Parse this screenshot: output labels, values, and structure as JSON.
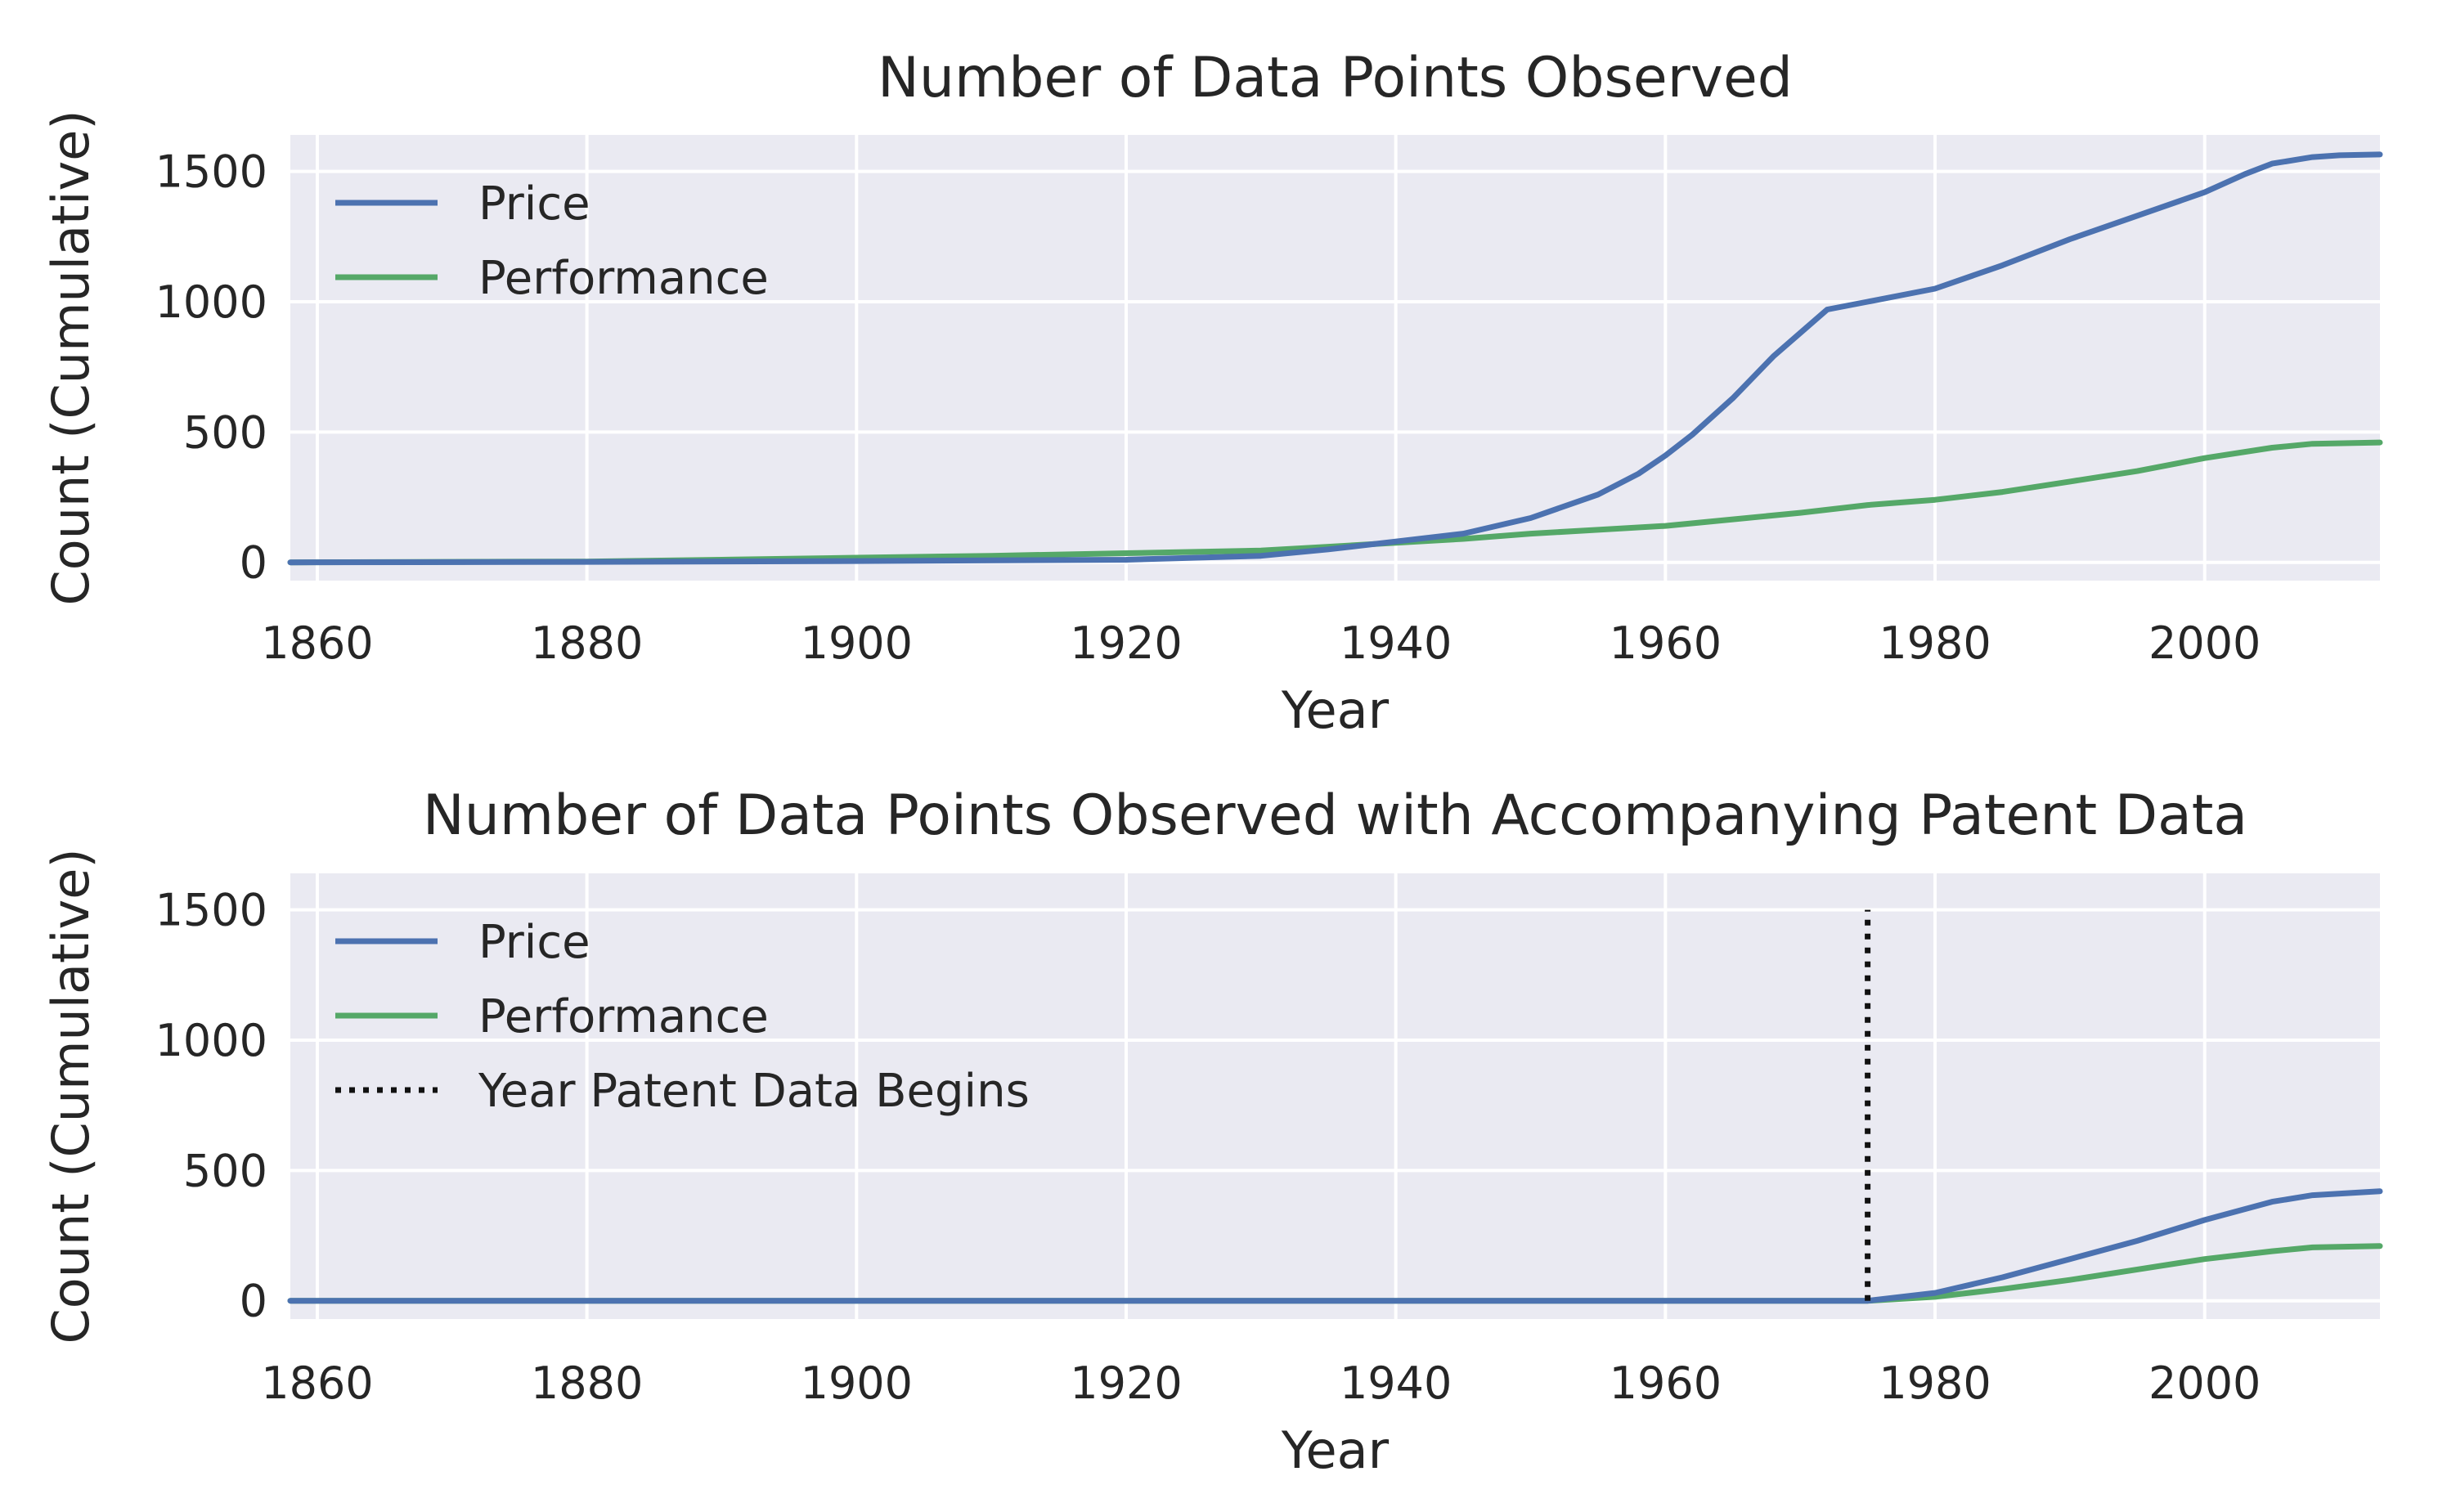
{
  "chart_data": [
    {
      "type": "line",
      "title": "Number of Data Points Observed",
      "xlabel": "Year",
      "ylabel": "Count (Cumulative)",
      "xlim": [
        1858,
        2013
      ],
      "ylim": [
        -70,
        1640
      ],
      "xticks": [
        "1860",
        "1880",
        "1900",
        "1920",
        "1940",
        "1960",
        "1980",
        "2000"
      ],
      "yticks": [
        "0",
        "500",
        "1000",
        "1500"
      ],
      "grid": true,
      "legend": "top-left",
      "series": [
        {
          "name": "Price",
          "color": "#4c72b0",
          "x": [
            1858,
            1880,
            1900,
            1920,
            1930,
            1935,
            1940,
            1945,
            1950,
            1955,
            1958,
            1960,
            1962,
            1965,
            1968,
            1970,
            1972,
            1975,
            1980,
            1985,
            1990,
            1995,
            2000,
            2003,
            2005,
            2008,
            2010,
            2013
          ],
          "y": [
            0,
            2,
            5,
            10,
            25,
            50,
            80,
            110,
            170,
            260,
            340,
            410,
            490,
            630,
            790,
            880,
            970,
            1000,
            1050,
            1140,
            1240,
            1330,
            1420,
            1490,
            1530,
            1555,
            1562,
            1565
          ]
        },
        {
          "name": "Performance",
          "color": "#55a868",
          "x": [
            1858,
            1880,
            1890,
            1900,
            1910,
            1920,
            1930,
            1935,
            1940,
            1945,
            1950,
            1955,
            1960,
            1965,
            1970,
            1975,
            1980,
            1985,
            1990,
            1995,
            2000,
            2005,
            2008,
            2013
          ],
          "y": [
            0,
            3,
            10,
            18,
            25,
            35,
            45,
            60,
            75,
            90,
            110,
            125,
            140,
            165,
            190,
            220,
            240,
            270,
            310,
            350,
            400,
            440,
            455,
            460
          ]
        }
      ]
    },
    {
      "type": "line",
      "title": "Number of Data Points Observed with Accompanying Patent Data",
      "xlabel": "Year",
      "ylabel": "Count (Cumulative)",
      "xlim": [
        1858,
        2013
      ],
      "ylim": [
        -70,
        1640
      ],
      "xticks": [
        "1860",
        "1880",
        "1900",
        "1920",
        "1940",
        "1960",
        "1980",
        "2000"
      ],
      "yticks": [
        "0",
        "500",
        "1000",
        "1500"
      ],
      "grid": true,
      "legend": "top-left",
      "series": [
        {
          "name": "Price",
          "color": "#4c72b0",
          "x": [
            1858,
            1975,
            1980,
            1985,
            1990,
            1995,
            2000,
            2005,
            2008,
            2013
          ],
          "y": [
            0,
            0,
            30,
            90,
            160,
            230,
            310,
            380,
            405,
            420
          ]
        },
        {
          "name": "Performance",
          "color": "#55a868",
          "x": [
            1858,
            1975,
            1980,
            1985,
            1990,
            1995,
            2000,
            2005,
            2008,
            2013
          ],
          "y": [
            0,
            0,
            15,
            45,
            80,
            120,
            160,
            190,
            205,
            210
          ]
        }
      ],
      "vline": {
        "name": "Year Patent Data Begins",
        "x": 1975,
        "y_range": [
          0,
          1500
        ],
        "color": "#111111"
      }
    }
  ]
}
